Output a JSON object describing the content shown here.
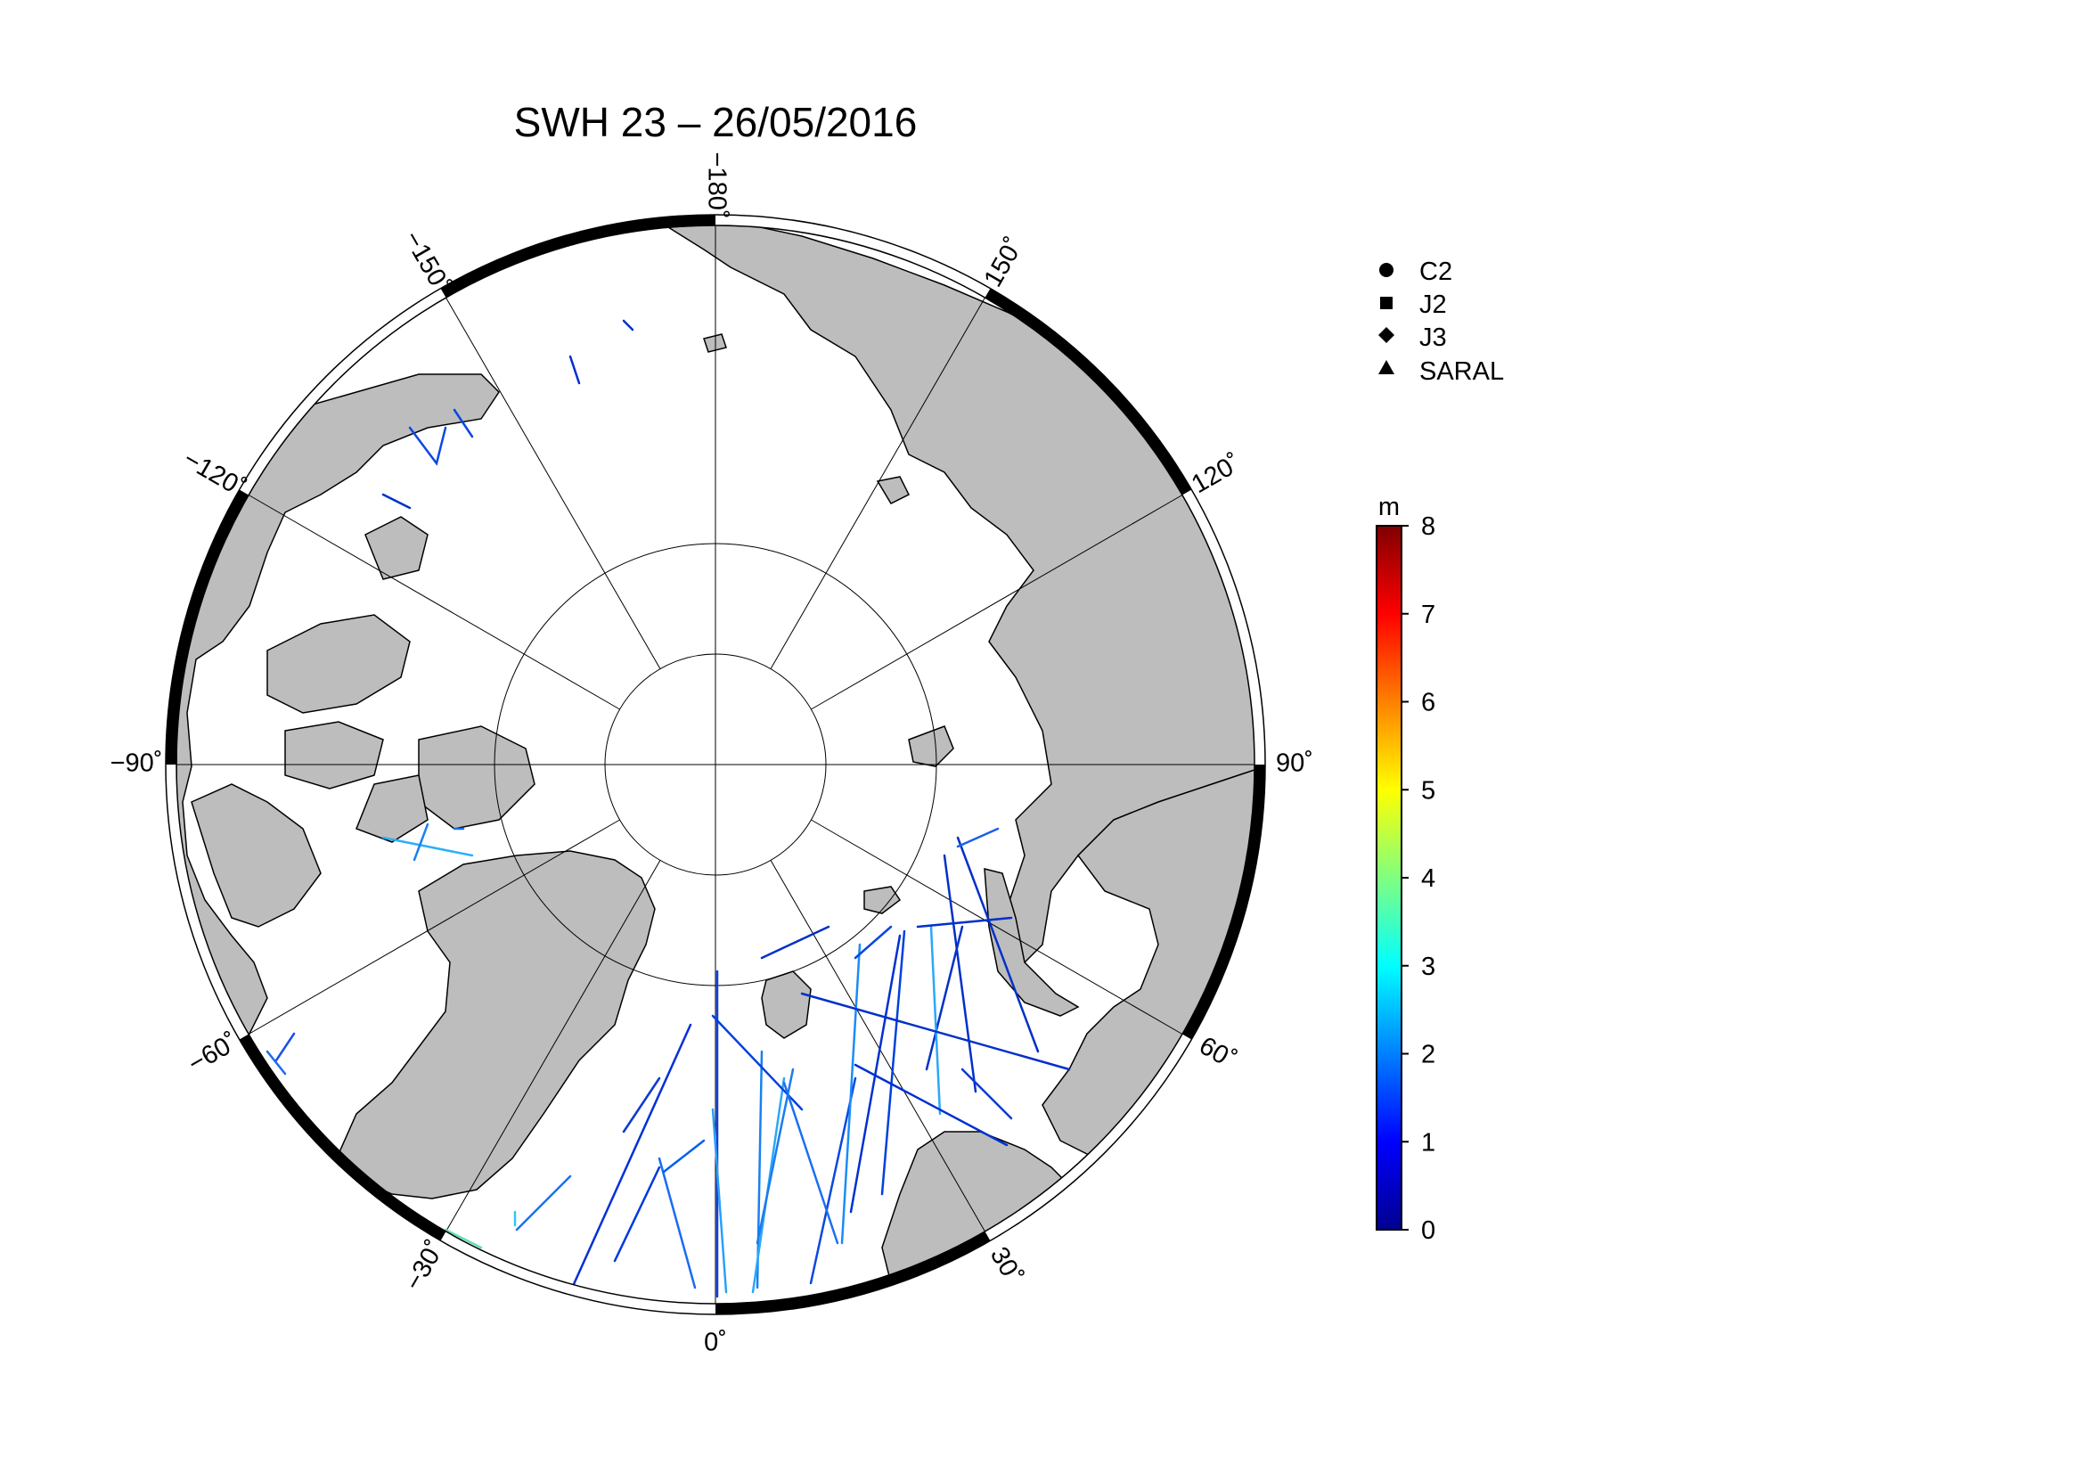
{
  "title": "SWH 23 – 26/05/2016",
  "longitude_labels": [
    {
      "deg": -180,
      "text": "−180˚"
    },
    {
      "deg": 150,
      "text": "150˚"
    },
    {
      "deg": 120,
      "text": "120˚"
    },
    {
      "deg": 90,
      "text": "90˚"
    },
    {
      "deg": 60,
      "text": "60˚"
    },
    {
      "deg": 30,
      "text": "30˚"
    },
    {
      "deg": 0,
      "text": "0˚"
    },
    {
      "deg": -30,
      "text": "−30˚"
    },
    {
      "deg": -60,
      "text": "−60˚"
    },
    {
      "deg": -90,
      "text": "−90˚"
    },
    {
      "deg": -120,
      "text": "−120˚"
    },
    {
      "deg": -150,
      "text": "−150˚"
    }
  ],
  "legend": {
    "items": [
      {
        "symbol": "circle",
        "label": "C2"
      },
      {
        "symbol": "square",
        "label": "J2"
      },
      {
        "symbol": "diamond",
        "label": "J3"
      },
      {
        "symbol": "triangle",
        "label": "SARAL"
      }
    ]
  },
  "colorbar": {
    "unit": "m",
    "min": 0,
    "max": 8,
    "ticks": [
      "0",
      "1",
      "2",
      "3",
      "4",
      "5",
      "6",
      "7",
      "8"
    ],
    "colormap": [
      "#00008f",
      "#0000ff",
      "#0080ff",
      "#00ffff",
      "#80ff80",
      "#ffff00",
      "#ff8000",
      "#ff0000",
      "#800000"
    ]
  },
  "colors": {
    "land": "#bdbdbd",
    "ocean": "#ffffff",
    "gridline": "#000000"
  },
  "chart_data": {
    "type": "map",
    "projection": "north polar stereographic",
    "variable": "SWH",
    "date_range": "23 – 26/05/2016",
    "unit": "m",
    "color_scale_range": [
      0,
      8
    ],
    "satellites": [
      "C2",
      "J2",
      "J3",
      "SARAL"
    ]
  }
}
